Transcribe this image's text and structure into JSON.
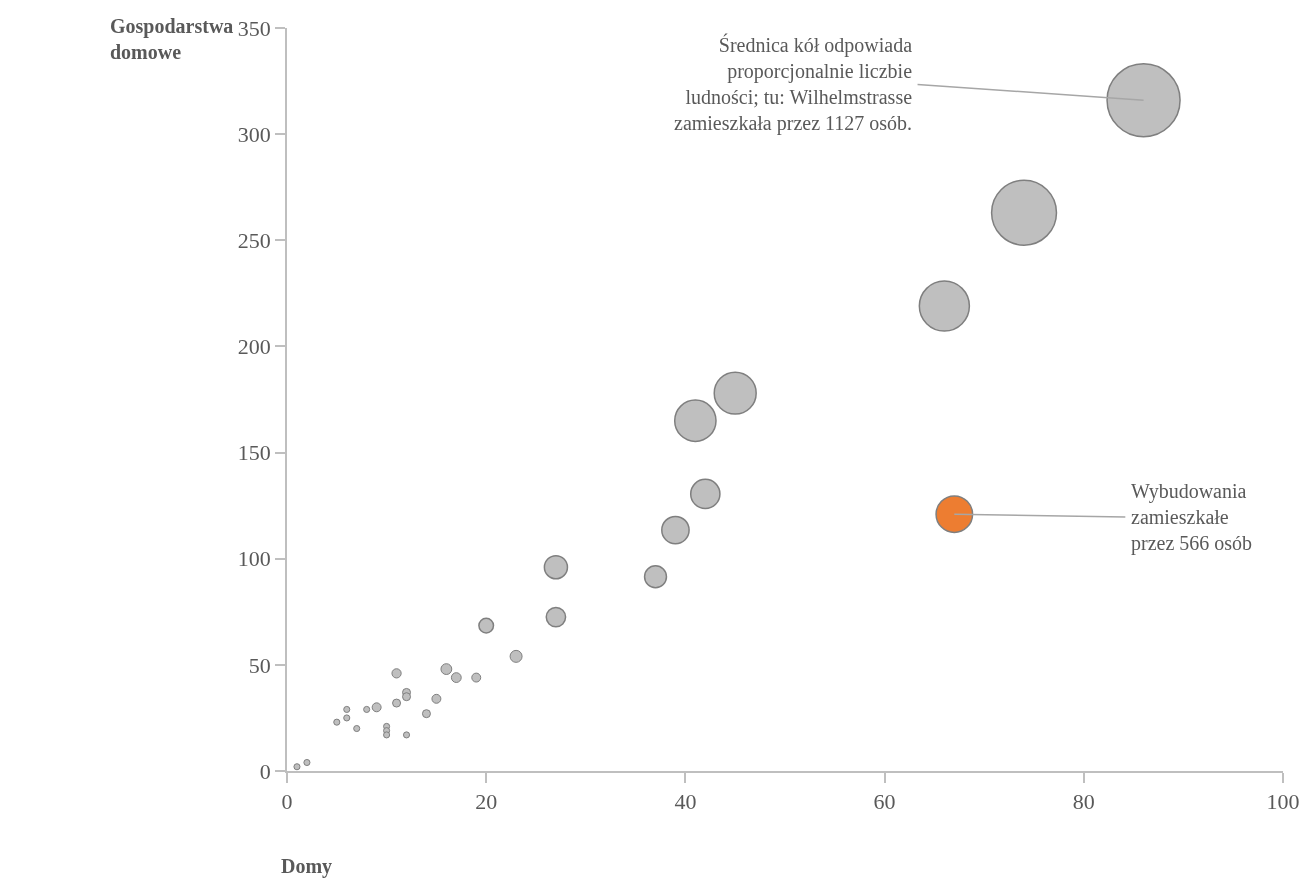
{
  "chart_data": {
    "type": "bubble",
    "xlabel": "Domy",
    "ylabel": "Gospodarstwa\ndomowe",
    "xlim": [
      0,
      100
    ],
    "xticks": [
      0,
      20,
      40,
      60,
      80,
      100
    ],
    "ylim": [
      0,
      350
    ],
    "yticks": [
      0,
      50,
      100,
      150,
      200,
      250,
      300,
      350
    ],
    "grid": false,
    "series": [
      {
        "color": "#bfbfbf",
        "x": [
          86,
          74,
          66,
          45,
          41,
          42,
          39,
          27,
          37,
          27,
          20,
          23,
          11,
          12,
          12,
          9,
          8,
          6,
          6,
          5,
          7,
          11,
          10,
          10,
          10,
          12,
          14,
          15,
          16,
          17,
          19,
          1,
          2
        ],
        "values": [
          316,
          263,
          219,
          178,
          165,
          130.5,
          113.5,
          96,
          91.5,
          72.5,
          68.5,
          54,
          46,
          37,
          35,
          30,
          29,
          29,
          25,
          23,
          20,
          32,
          21,
          19,
          17,
          17,
          27,
          34,
          48,
          44,
          44,
          2,
          4
        ],
        "sizes": [
          1,
          0.79,
          0.47,
          0.33,
          0.32,
          0.16,
          0.14,
          0.1,
          0.09,
          0.07,
          0.04,
          0.027,
          0.016,
          0.012,
          0.012,
          0.015,
          0.007,
          0.007,
          0.007,
          0.007,
          0.007,
          0.012,
          0.007,
          0.007,
          0.007,
          0.007,
          0.012,
          0.015,
          0.022,
          0.018,
          0.015,
          0.007,
          0.007
        ]
      },
      {
        "color": "#ed7d31",
        "x": [
          67
        ],
        "values": [
          121
        ],
        "sizes": [
          0.25
        ]
      }
    ],
    "annotations": [
      {
        "text": "Średnica kół odpowiada\nproporcjonalnie liczbie\nludności; tu: Wilhelmstrasse\nzamieszkała przez 1127 osób.",
        "x": 86,
        "y": 316
      },
      {
        "text": "Wybudowania\nzamieszkałe\nprzez 566 osób",
        "x": 67,
        "y": 121
      }
    ]
  }
}
